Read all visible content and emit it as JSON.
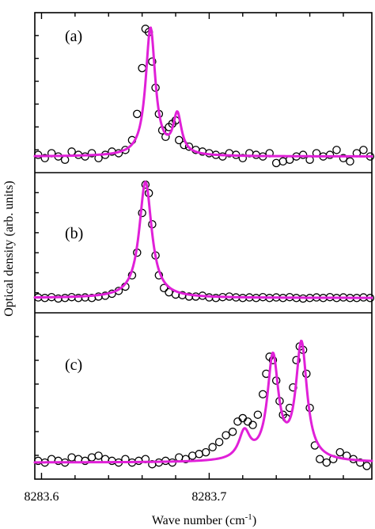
{
  "chart_data": {
    "type": "line",
    "xlabel": "Wave number (cm",
    "xlabel_sup": "-1",
    "xlabel_close": ")",
    "ylabel": "Optical density (arb. units)",
    "x_ticks": [
      "8283.6",
      "8283.7"
    ],
    "xlim": [
      8283.596,
      8283.797
    ],
    "colors": {
      "fit": "#e020d8",
      "points": "#000000"
    },
    "panels": [
      {
        "label": "(a)",
        "ylim": [
          -0.3,
          4.2
        ],
        "fit_peaks": [
          {
            "x0": 8283.665,
            "amp": 3.9,
            "w": 0.0035
          },
          {
            "x0": 8283.681,
            "amp": 1.2,
            "w": 0.003
          }
        ],
        "data": {
          "x": [
            8283.598,
            8283.602,
            8283.606,
            8283.61,
            8283.614,
            8283.618,
            8283.622,
            8283.626,
            8283.63,
            8283.634,
            8283.638,
            8283.642,
            8283.646,
            8283.65,
            8283.654,
            8283.657,
            8283.66,
            8283.662,
            8283.664,
            8283.666,
            8283.668,
            8283.67,
            8283.672,
            8283.674,
            8283.676,
            8283.678,
            8283.68,
            8283.682,
            8283.685,
            8283.688,
            8283.692,
            8283.696,
            8283.7,
            8283.704,
            8283.708,
            8283.712,
            8283.716,
            8283.72,
            8283.724,
            8283.728,
            8283.732,
            8283.736,
            8283.74,
            8283.744,
            8283.748,
            8283.752,
            8283.756,
            8283.76,
            8283.764,
            8283.768,
            8283.772,
            8283.776,
            8283.78,
            8283.784,
            8283.788,
            8283.792,
            8283.796
          ],
          "y": [
            0.05,
            -0.05,
            0.1,
            0.0,
            -0.1,
            0.15,
            0.05,
            0.0,
            0.1,
            -0.05,
            0.05,
            0.15,
            0.1,
            0.2,
            0.5,
            1.3,
            2.7,
            3.9,
            3.8,
            2.9,
            2.1,
            1.3,
            0.8,
            0.6,
            0.9,
            1.0,
            1.1,
            0.5,
            0.35,
            0.3,
            0.2,
            0.15,
            0.1,
            0.05,
            0.0,
            0.1,
            0.05,
            -0.05,
            0.1,
            0.05,
            0.0,
            0.1,
            -0.2,
            -0.15,
            -0.1,
            0.0,
            0.05,
            -0.1,
            0.1,
            0.0,
            0.05,
            0.2,
            -0.05,
            -0.15,
            0.1,
            0.2,
            0.0
          ]
        }
      },
      {
        "label": "(b)",
        "ylim": [
          -0.3,
          4.2
        ],
        "fit_peaks": [
          {
            "x0": 8283.662,
            "amp": 4.1,
            "w": 0.0045
          }
        ],
        "data": {
          "x": [
            8283.598,
            8283.602,
            8283.606,
            8283.61,
            8283.614,
            8283.618,
            8283.622,
            8283.626,
            8283.63,
            8283.634,
            8283.638,
            8283.642,
            8283.646,
            8283.65,
            8283.654,
            8283.657,
            8283.66,
            8283.662,
            8283.664,
            8283.666,
            8283.668,
            8283.67,
            8283.673,
            8283.676,
            8283.68,
            8283.684,
            8283.688,
            8283.692,
            8283.696,
            8283.7,
            8283.704,
            8283.708,
            8283.712,
            8283.716,
            8283.72,
            8283.724,
            8283.728,
            8283.732,
            8283.736,
            8283.74,
            8283.744,
            8283.748,
            8283.752,
            8283.756,
            8283.76,
            8283.764,
            8283.768,
            8283.772,
            8283.776,
            8283.78,
            8283.784,
            8283.788,
            8283.792,
            8283.796
          ],
          "y": [
            0.02,
            0.0,
            0.03,
            -0.02,
            0.0,
            0.03,
            0.0,
            0.02,
            0.0,
            0.05,
            0.08,
            0.15,
            0.25,
            0.4,
            0.8,
            1.6,
            3.0,
            4.0,
            3.7,
            2.6,
            1.5,
            0.8,
            0.35,
            0.2,
            0.12,
            0.1,
            0.05,
            0.05,
            0.08,
            0.02,
            0.0,
            0.03,
            0.05,
            0.02,
            0.0,
            0.02,
            0.0,
            0.03,
            0.0,
            0.02,
            0.0,
            0.03,
            0.0,
            -0.02,
            0.0,
            0.02,
            0.0,
            0.03,
            0.0,
            0.02,
            0.0,
            0.0,
            0.02,
            0.0
          ]
        }
      },
      {
        "label": "(c)",
        "ylim": [
          -0.3,
          4.2
        ],
        "fit_peaks": [
          {
            "x0": 8283.721,
            "amp": 0.8,
            "w": 0.004
          },
          {
            "x0": 8283.738,
            "amp": 3.0,
            "w": 0.004
          },
          {
            "x0": 8283.755,
            "amp": 3.4,
            "w": 0.004
          }
        ],
        "data": {
          "x": [
            8283.598,
            8283.602,
            8283.606,
            8283.61,
            8283.614,
            8283.618,
            8283.622,
            8283.626,
            8283.63,
            8283.634,
            8283.638,
            8283.642,
            8283.646,
            8283.65,
            8283.654,
            8283.658,
            8283.662,
            8283.666,
            8283.67,
            8283.674,
            8283.678,
            8283.682,
            8283.686,
            8283.69,
            8283.694,
            8283.698,
            8283.702,
            8283.706,
            8283.71,
            8283.714,
            8283.717,
            8283.72,
            8283.723,
            8283.726,
            8283.729,
            8283.732,
            8283.734,
            8283.736,
            8283.738,
            8283.74,
            8283.742,
            8283.744,
            8283.746,
            8283.748,
            8283.75,
            8283.752,
            8283.754,
            8283.756,
            8283.758,
            8283.76,
            8283.763,
            8283.766,
            8283.77,
            8283.774,
            8283.778,
            8283.782,
            8283.786,
            8283.79,
            8283.794
          ],
          "y": [
            0.05,
            0.0,
            0.1,
            0.05,
            0.0,
            0.15,
            0.1,
            0.05,
            0.15,
            0.2,
            0.1,
            0.05,
            0.0,
            0.1,
            0.0,
            0.05,
            0.1,
            -0.05,
            0.0,
            0.05,
            0.0,
            0.15,
            0.1,
            0.2,
            0.25,
            0.3,
            0.45,
            0.6,
            0.8,
            0.9,
            1.2,
            1.3,
            1.2,
            1.1,
            1.4,
            2.0,
            2.6,
            3.1,
            3.0,
            2.4,
            1.8,
            1.4,
            1.3,
            1.6,
            2.2,
            3.0,
            3.4,
            3.3,
            2.6,
            1.6,
            0.5,
            0.1,
            0.0,
            0.1,
            0.3,
            0.2,
            0.1,
            0.0,
            -0.1
          ]
        }
      }
    ]
  }
}
